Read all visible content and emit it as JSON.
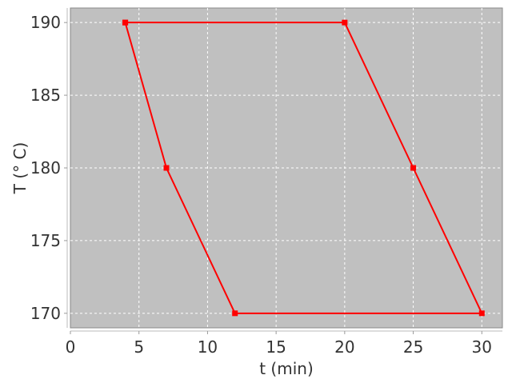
{
  "chart_data": {
    "type": "line",
    "title": "",
    "xlabel": "t (min)",
    "ylabel": "T (° C)",
    "xlim": [
      0,
      31.5
    ],
    "ylim": [
      169,
      191
    ],
    "xticks": [
      0,
      5,
      10,
      15,
      20,
      25,
      30
    ],
    "yticks": [
      170,
      175,
      180,
      185,
      190
    ],
    "grid": true,
    "legend": "none",
    "colors": {
      "background": "#c0c0c0",
      "series": "#ff0000",
      "grid": "#ffffff"
    },
    "series": [
      {
        "marker": "square",
        "x": [
          4,
          20,
          25,
          30,
          12,
          7,
          4
        ],
        "y": [
          190,
          190,
          180,
          170,
          170,
          180,
          190
        ]
      }
    ]
  }
}
